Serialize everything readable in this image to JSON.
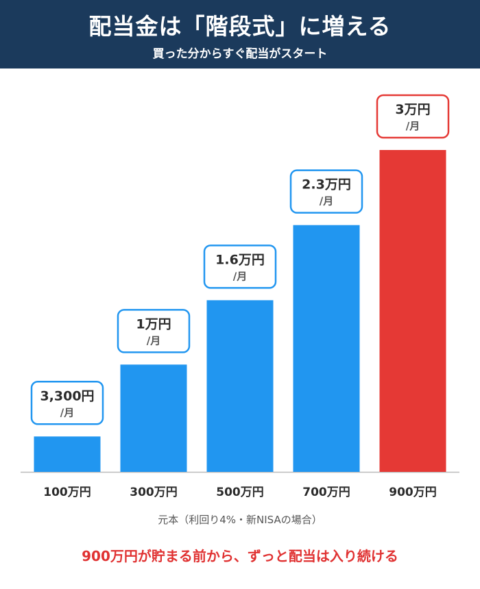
{
  "header": {
    "title": "配当金は「階段式」に増える",
    "subtitle": "買った分からすぐ配当がスタート"
  },
  "chart_data": {
    "type": "bar",
    "categories": [
      "100万円",
      "300万円",
      "500万円",
      "700万円",
      "900万円"
    ],
    "values": [
      0.33,
      1,
      1.6,
      2.3,
      3
    ],
    "value_labels": [
      "3,300円",
      "1万円",
      "1.6万円",
      "2.3万円",
      "3万円"
    ],
    "per_unit": "/月",
    "unit": "万円/月",
    "colors": [
      "#2196f0",
      "#2196f0",
      "#2196f0",
      "#2196f0",
      "#e53935"
    ],
    "highlight_index": 4,
    "ylim": [
      0,
      3.45
    ],
    "grid": false,
    "legend": "none"
  },
  "caption": "元本（利回り4%・新NISAの場合）",
  "footer": {
    "text": "900万円が貯まる前から、ずっと配当は入り続ける",
    "color": "#e03131"
  },
  "colors": {
    "header_bg": "#1b3a5c",
    "bar": "#2196f0",
    "highlight": "#e53935",
    "axis": "#bbbbbb",
    "text": "#2b2b2b"
  }
}
